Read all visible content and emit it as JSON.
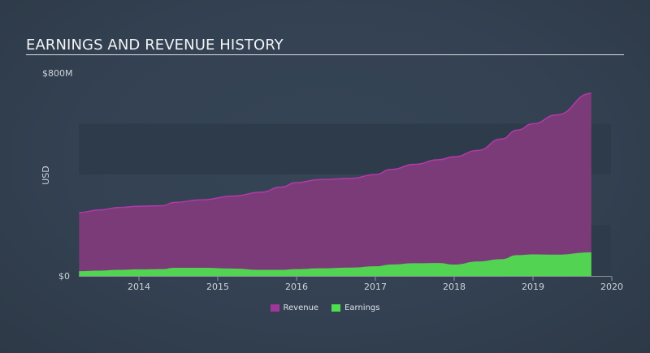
{
  "title": "EARNINGS AND REVENUE HISTORY",
  "colors": {
    "revenue_fill": "#7b3a78",
    "revenue_line": "#b23aa8",
    "revenue_swatch": "#a0359a",
    "earnings_fill": "#52d452",
    "earnings_swatch": "#4fdc4f",
    "band": "#2e3b4a",
    "axis": "#8c96a3"
  },
  "legend": [
    {
      "label": "Revenue",
      "key": "revenue"
    },
    {
      "label": "Earnings",
      "key": "earnings"
    }
  ],
  "chart_data": {
    "type": "area",
    "title": "EARNINGS AND REVENUE HISTORY",
    "xlabel": "",
    "ylabel": "USD",
    "y_tick_labels": [
      "$0",
      "$800M"
    ],
    "ylim": [
      0,
      800
    ],
    "y_unit": "USD millions",
    "x_tick_labels": [
      "2014",
      "2015",
      "2016",
      "2017",
      "2018",
      "2019",
      "2020"
    ],
    "xlim": [
      2013.24,
      2020.0
    ],
    "grid": "alternating horizontal bands every $200M",
    "legend_position": "bottom-center",
    "x": [
      2013.24,
      2013.5,
      2013.75,
      2014.0,
      2014.3,
      2014.45,
      2014.8,
      2015.2,
      2015.55,
      2015.8,
      2016.0,
      2016.3,
      2016.7,
      2017.0,
      2017.2,
      2017.5,
      2017.8,
      2018.0,
      2018.3,
      2018.6,
      2018.8,
      2019.0,
      2019.3,
      2019.74
    ],
    "series": [
      {
        "name": "Revenue",
        "values": [
          250,
          260,
          270,
          275,
          277,
          290,
          300,
          315,
          330,
          350,
          368,
          380,
          385,
          400,
          420,
          440,
          458,
          470,
          495,
          540,
          575,
          600,
          635,
          720
        ]
      },
      {
        "name": "Earnings",
        "values": [
          19,
          21,
          24,
          26,
          27,
          32,
          32,
          29,
          24,
          24,
          27,
          30,
          33,
          38,
          45,
          50,
          51,
          45,
          57,
          66,
          82,
          85,
          84,
          93
        ]
      }
    ]
  }
}
